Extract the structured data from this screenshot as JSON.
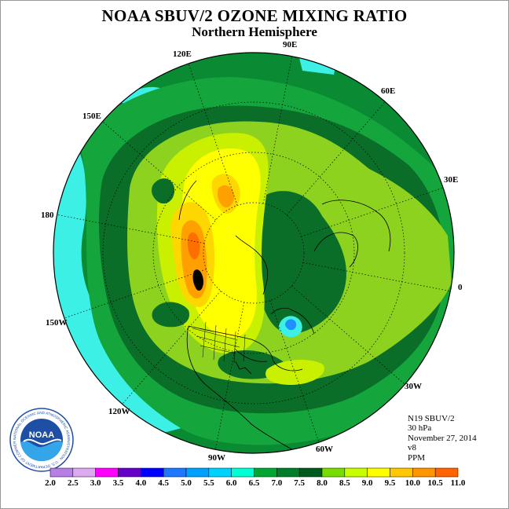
{
  "header": {
    "title": "NOAA SBUV/2 OZONE MIXING RATIO",
    "subtitle": "Northern Hemisphere"
  },
  "longitude_labels": [
    "90E",
    "60E",
    "30E",
    "0",
    "30W",
    "60W",
    "90W",
    "120W",
    "150W",
    "180",
    "150E",
    "120E"
  ],
  "info": {
    "instrument": "N19 SBUV/2",
    "level": "30 hPa",
    "date": "November 27, 2014",
    "version": "v8",
    "units": "PPM"
  },
  "logo": {
    "text": "NOAA",
    "ring_text": "NATIONAL OCEANIC AND ATMOSPHERIC ADMINISTRATION · U.S. DEPARTMENT OF COMMERCE"
  },
  "colorbar": {
    "labels": [
      "2.0",
      "2.5",
      "3.0",
      "3.5",
      "4.0",
      "4.5",
      "5.0",
      "5.5",
      "6.0",
      "6.5",
      "7.0",
      "7.5",
      "8.0",
      "8.5",
      "9.0",
      "9.5",
      "10.0",
      "10.5",
      "11.0"
    ],
    "colors": [
      "#b57fe6",
      "#dcaaf0",
      "#ff00ff",
      "#6400c8",
      "#0000ff",
      "#1e78ff",
      "#00a0ff",
      "#00d2ff",
      "#00ffd2",
      "#00a532",
      "#007d28",
      "#005a1e",
      "#78dc00",
      "#c8ff00",
      "#ffff00",
      "#ffc800",
      "#ff9600",
      "#ff6400",
      "#ff0000",
      "#c80000",
      "#825028"
    ]
  },
  "map_colors": {
    "c55": "#3cf0e6",
    "c60": "#14a53c",
    "c65": "#0a8a32",
    "c70": "#0a6e28",
    "c75": "#8cd21e",
    "c80": "#c8f000",
    "c85": "#ffff00",
    "c90": "#ffd700",
    "c95": "#ffa000",
    "c100": "#ff6e00",
    "blue": "#1e90ff"
  }
}
